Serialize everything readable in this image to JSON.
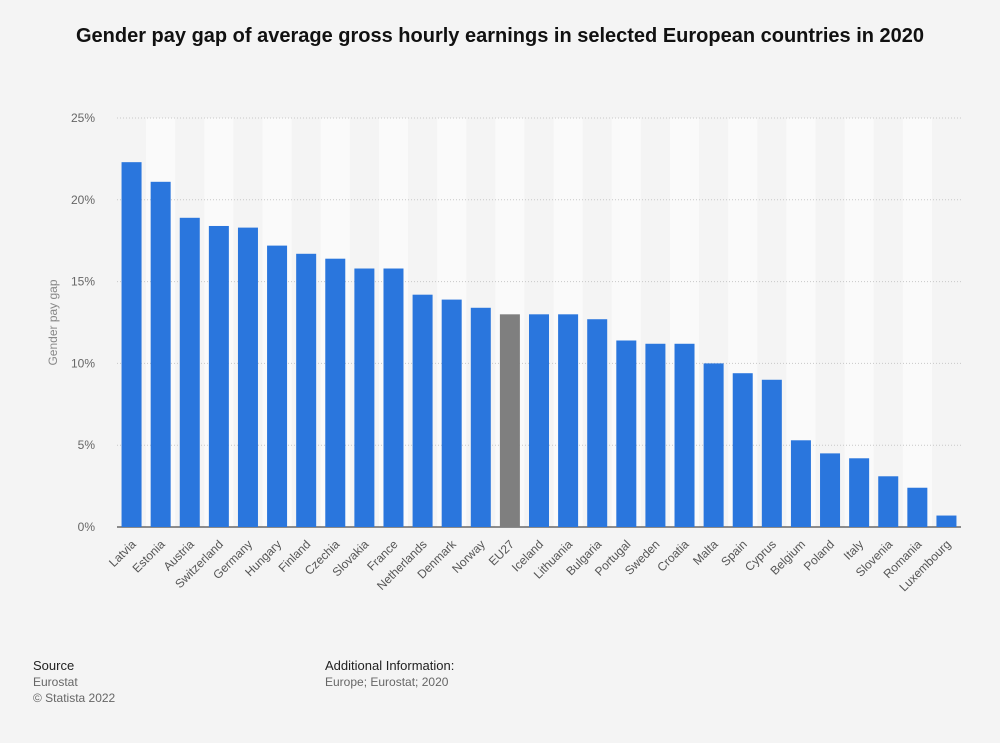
{
  "chart_data": {
    "type": "bar",
    "title": "Gender pay gap of average gross hourly earnings in selected European countries in 2020",
    "ylabel": "Gender pay gap",
    "xlabel": "",
    "ylim": [
      0,
      25
    ],
    "yticks": [
      "0%",
      "5%",
      "10%",
      "15%",
      "20%",
      "25%"
    ],
    "grid": true,
    "categories": [
      "Latvia",
      "Estonia",
      "Austria",
      "Switzerland",
      "Germany",
      "Hungary",
      "Finland",
      "Czechia",
      "Slovakia",
      "France",
      "Netherlands",
      "Denmark",
      "Norway",
      "EU27",
      "Iceland",
      "Lithuania",
      "Bulgaria",
      "Portugal",
      "Sweden",
      "Croatia",
      "Malta",
      "Spain",
      "Cyprus",
      "Belgium",
      "Poland",
      "Italy",
      "Slovenia",
      "Romania",
      "Luxembourg"
    ],
    "values": [
      22.3,
      21.1,
      18.9,
      18.4,
      18.3,
      17.2,
      16.7,
      16.4,
      15.8,
      15.8,
      14.2,
      13.9,
      13.4,
      13.0,
      13.0,
      13.0,
      12.7,
      11.4,
      11.2,
      11.2,
      10.0,
      9.4,
      9.0,
      5.3,
      4.5,
      4.2,
      3.1,
      2.4,
      0.7
    ],
    "highlight_category": "EU27",
    "colors": {
      "bar": "#2a76dd",
      "highlight": "#7f7f7f"
    }
  },
  "footer": {
    "source_heading": "Source",
    "source_name": "Eurostat",
    "copyright": "© Statista 2022",
    "info_heading": "Additional Information:",
    "info_text": "Europe; Eurostat; 2020"
  }
}
